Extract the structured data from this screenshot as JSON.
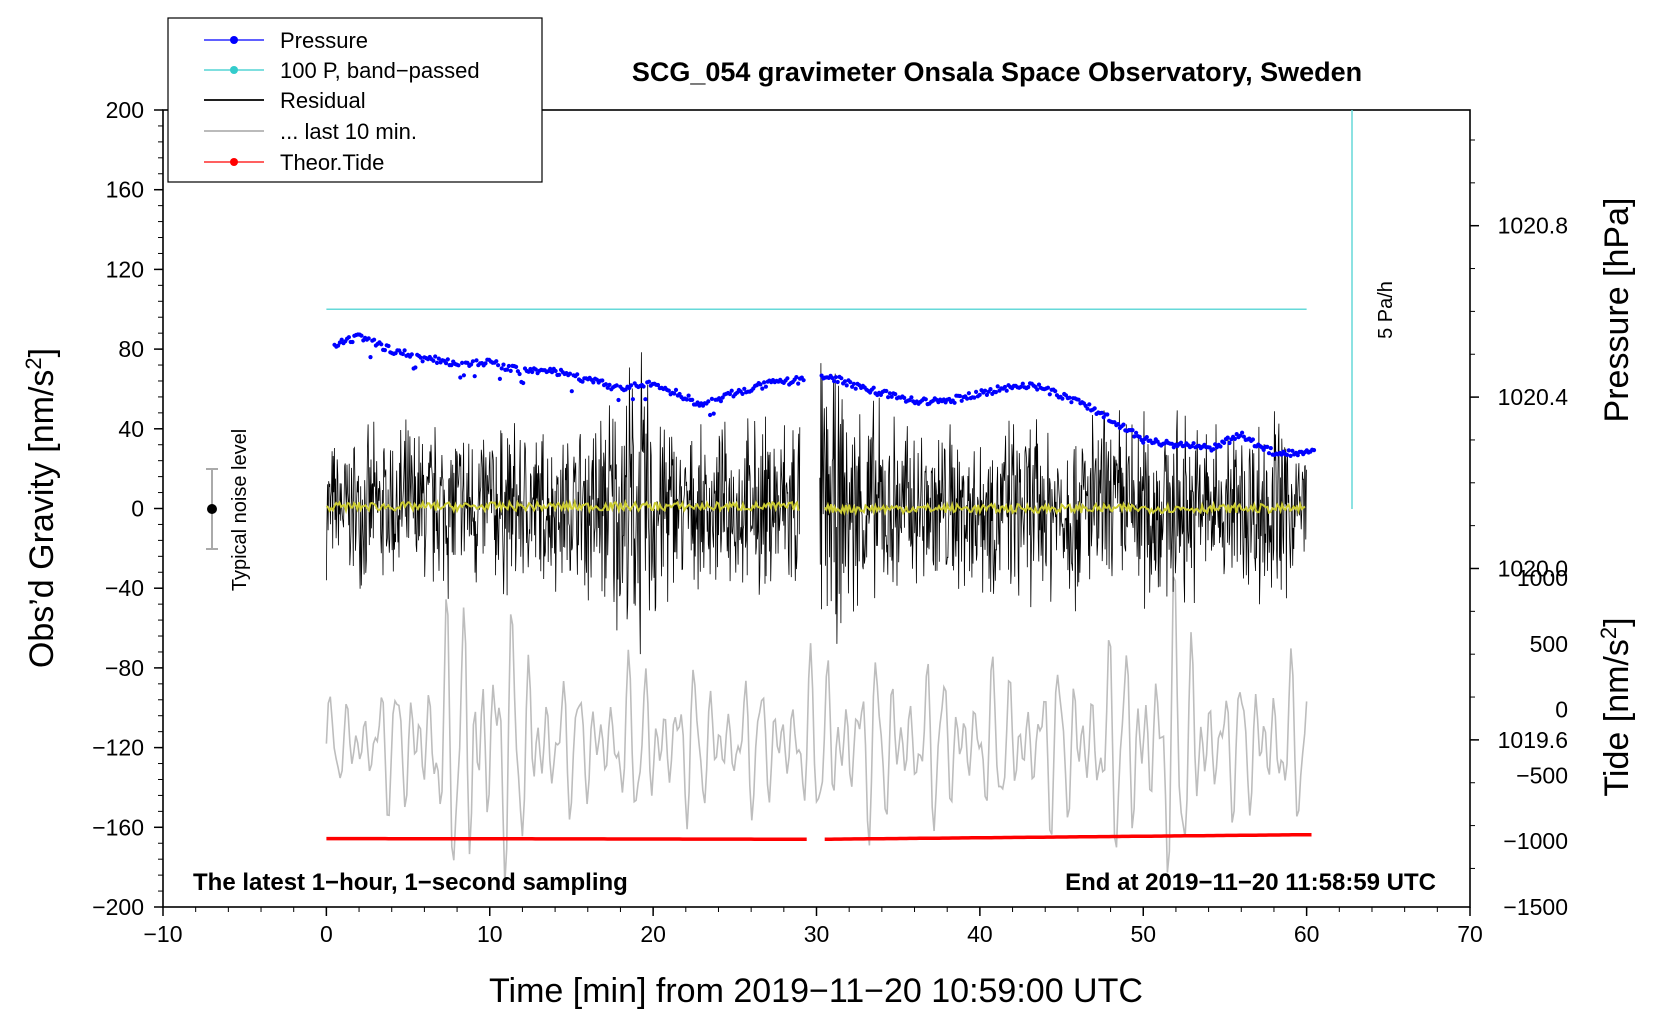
{
  "chart_data": {
    "type": "line",
    "title": "SCG_054 gravimeter Onsala Space Observatory, Sweden",
    "xlabel": "Time [min] from 2019−11−20 10:59:00 UTC",
    "ylabel_left_main": "Obs’d Gravity [nm/s",
    "ylabel_left_sup": "2",
    "ylabel_left_end": "]",
    "ylabel_right_top": "Pressure [hPa]",
    "ylabel_right_bottom_main": "Tide [nm/s",
    "ylabel_right_bottom_sup": "2",
    "ylabel_right_bottom_end": "]",
    "xlim": [
      -10,
      70
    ],
    "ylim": [
      -200,
      200
    ],
    "pressure_ylim": [
      1019.21,
      1021.07
    ],
    "tide_ylim": [
      -1500,
      1000
    ],
    "x_ticks": [
      "−10",
      "0",
      "10",
      "20",
      "30",
      "40",
      "50",
      "60",
      "70"
    ],
    "y_ticks": [
      "−200",
      "−160",
      "−120",
      "−80",
      "−40",
      "0",
      "40",
      "80",
      "120",
      "160",
      "200"
    ],
    "pressure_ticks": [
      "1019.6",
      "1020.0",
      "1020.4",
      "1020.8"
    ],
    "tide_ticks": [
      "−1500",
      "−1000",
      "−500",
      "0",
      "500",
      "1000"
    ],
    "legend": [
      {
        "label": "Pressure",
        "color": "#0000ff",
        "style": "line-dot"
      },
      {
        "label": "100 P, band−passed",
        "color": "#33cccc",
        "style": "line-dot"
      },
      {
        "label": "Residual",
        "color": "#000000",
        "style": "line"
      },
      {
        "label": "... last 10 min.",
        "color": "#bbbbbb",
        "style": "line"
      },
      {
        "label": "Theor.Tide",
        "color": "#ff0000",
        "style": "line-dot"
      }
    ],
    "annotations": {
      "left_note": "The latest 1−hour, 1−second sampling",
      "right_note": "End at 2019−11−20 11:58:59 UTC",
      "noise_label": "Typical noise level",
      "rate_label": "5 Pa/h"
    },
    "series": [
      {
        "name": "Pressure",
        "unit": "hPa",
        "x": [
          0.5,
          2,
          4,
          6,
          8,
          10,
          12,
          14,
          16,
          18,
          20,
          22,
          23,
          25,
          27,
          29,
          30.5,
          33,
          36,
          38,
          40,
          43,
          46,
          48,
          50,
          52,
          54,
          56,
          58,
          60.5
        ],
        "values": [
          1020.52,
          1020.54,
          1020.51,
          1020.49,
          1020.48,
          1020.48,
          1020.46,
          1020.46,
          1020.44,
          1020.42,
          1020.43,
          1020.4,
          1020.38,
          1020.41,
          1020.43,
          1020.44,
          1020.45,
          1020.42,
          1020.39,
          1020.39,
          1020.41,
          1020.43,
          1020.39,
          1020.35,
          1020.3,
          1020.29,
          1020.28,
          1020.31,
          1020.27,
          1020.27
        ]
      },
      {
        "name": "100 P, band−passed",
        "unit": "nm/s2",
        "x": [
          0,
          60
        ],
        "values": [
          100,
          100
        ]
      },
      {
        "name": "Residual",
        "unit": "nm/s2",
        "envelope_x": [
          0,
          5,
          10,
          15,
          19.3,
          22,
          25,
          29,
          30.2,
          31.5,
          35,
          40,
          45,
          50,
          52,
          55,
          58,
          60
        ],
        "envelope_amplitude": [
          38,
          50,
          52,
          45,
          90,
          40,
          48,
          60,
          95,
          70,
          55,
          50,
          55,
          60,
          55,
          50,
          60,
          42
        ]
      },
      {
        "name": "Residual mean (yellow)",
        "unit": "nm/s2",
        "x": [
          0,
          29,
          30.5,
          60
        ],
        "values": [
          1,
          1,
          0,
          0
        ]
      },
      {
        "name": "... last 10 min.",
        "unit": "nm/s2",
        "x_offset_min": 0,
        "baseline": -118,
        "envelope_x": [
          0,
          5,
          9,
          15,
          20,
          25,
          29,
          30.5,
          35,
          40,
          45,
          50,
          52,
          55,
          58,
          60
        ],
        "envelope_amplitude": [
          20,
          35,
          80,
          30,
          40,
          30,
          35,
          45,
          40,
          35,
          40,
          55,
          75,
          30,
          45,
          35
        ]
      },
      {
        "name": "Theor.Tide",
        "unit": "nm/s2",
        "x": [
          0,
          29.5,
          30.5,
          60.5
        ],
        "values": [
          -980,
          -985,
          -985,
          -950
        ]
      }
    ]
  }
}
